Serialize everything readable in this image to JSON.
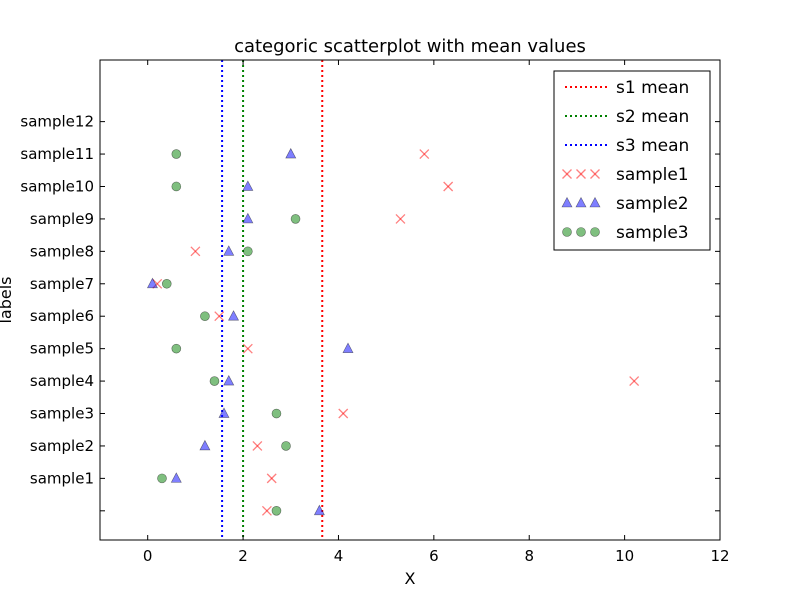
{
  "chart_data": {
    "type": "scatter",
    "title": "categoric scatterplot with mean values",
    "xlabel": "X",
    "ylabel": "labels",
    "xlim": [
      -1,
      12
    ],
    "xticks": [
      0,
      2,
      4,
      6,
      8,
      10,
      12
    ],
    "ylim": [
      -1.9,
      12.9
    ],
    "categories": [
      "",
      "sample1",
      "sample2",
      "sample3",
      "sample4",
      "sample5",
      "sample6",
      "sample7",
      "sample8",
      "sample9",
      "sample10",
      "sample11",
      "sample12"
    ],
    "grid": false,
    "legend_position": "top-right",
    "series": [
      {
        "name": "sample1",
        "marker": "x",
        "color": "#ff0000",
        "x": [
          2.5,
          2.6,
          2.3,
          4.1,
          10.2,
          2.1,
          1.5,
          0.2,
          1.0,
          5.3,
          6.3,
          5.8
        ],
        "y": [
          -1,
          0,
          1,
          2,
          3,
          4,
          5,
          6,
          7,
          8,
          9,
          10
        ]
      },
      {
        "name": "sample2",
        "marker": "triangle",
        "color": "#0000ff",
        "x": [
          3.6,
          0.6,
          1.2,
          1.6,
          1.7,
          4.2,
          1.8,
          0.1,
          1.7,
          2.1,
          2.1,
          3.0
        ],
        "y": [
          -1,
          0,
          1,
          2,
          3,
          4,
          5,
          6,
          7,
          8,
          9,
          10
        ]
      },
      {
        "name": "sample3",
        "marker": "circle",
        "color": "#008000",
        "x": [
          2.7,
          0.3,
          2.9,
          2.7,
          1.4,
          0.6,
          1.2,
          0.4,
          2.1,
          3.1,
          0.6,
          0.6
        ],
        "y": [
          -1,
          0,
          1,
          2,
          3,
          4,
          5,
          6,
          7,
          8,
          9,
          10
        ]
      }
    ],
    "mean_lines": [
      {
        "name": "s1 mean",
        "x": 3.66,
        "color": "#ff0000"
      },
      {
        "name": "s2 mean",
        "x": 2.0,
        "color": "#008000"
      },
      {
        "name": "s3 mean",
        "x": 1.56,
        "color": "#0000ff"
      }
    ]
  }
}
